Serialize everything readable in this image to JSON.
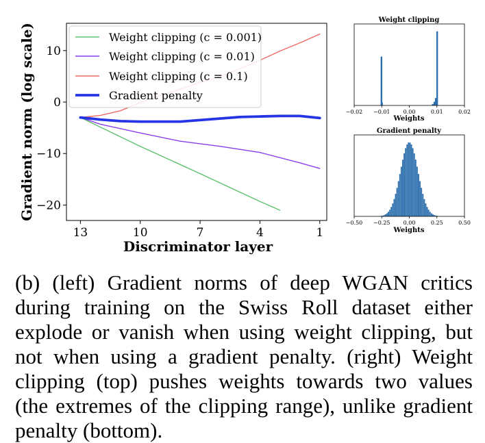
{
  "chart_data": [
    {
      "type": "line",
      "title": "",
      "xlabel": "Discriminator layer",
      "ylabel": "Gradient norm (log scale)",
      "xticks": [
        13,
        10,
        7,
        4,
        1
      ],
      "yticks": [
        10,
        0,
        -10,
        -20
      ],
      "xlim": [
        13.7,
        0.65
      ],
      "ylim": [
        -23.0,
        15.3
      ],
      "x_reversed": true,
      "grid": false,
      "legend_position": "top-left",
      "series": [
        {
          "name": "Weight clipping (c = 0.001)",
          "color": "#5cc26b",
          "line_width": 1.4,
          "x": [
            13,
            10,
            7,
            4,
            3
          ],
          "y": [
            -3.0,
            -8.6,
            -13.9,
            -19.3,
            -21.0
          ]
        },
        {
          "name": "Weight clipping (c = 0.01)",
          "color": "#8a3ef0",
          "line_width": 1.4,
          "x": [
            13,
            12,
            10,
            8,
            6,
            4,
            2,
            1
          ],
          "y": [
            -3.0,
            -4.3,
            -6.0,
            -7.6,
            -8.6,
            -9.8,
            -11.8,
            -12.9
          ]
        },
        {
          "name": "Weight clipping (c = 0.1)",
          "color": "#ef6b66",
          "line_width": 1.4,
          "x": [
            13,
            12,
            11,
            10,
            9,
            8,
            7,
            6,
            5,
            4,
            3,
            2,
            1
          ],
          "y": [
            -3.0,
            -2.6,
            -1.7,
            -0.1,
            1.3,
            2.5,
            3.8,
            5.0,
            6.5,
            8.1,
            9.9,
            11.5,
            13.2
          ]
        },
        {
          "name": "Gradient penalty",
          "color": "#2535e6",
          "line_width": 3.8,
          "x": [
            13,
            12,
            11,
            10,
            9,
            8,
            7,
            6,
            5,
            4,
            3,
            2,
            1
          ],
          "y": [
            -3.0,
            -3.4,
            -3.7,
            -3.8,
            -3.8,
            -3.8,
            -3.5,
            -3.2,
            -2.9,
            -2.8,
            -2.7,
            -2.7,
            -3.1
          ]
        }
      ]
    },
    {
      "type": "bar",
      "title": "Weight clipping",
      "xlabel": "Weights",
      "ylabel": "",
      "xticks": [
        -0.02,
        -0.01,
        0.0,
        0.01,
        0.02
      ],
      "xtick_labels": [
        "−0.02",
        "−0.01",
        "0.00",
        "0.01",
        "0.02"
      ],
      "xlim": [
        -0.02,
        0.02
      ],
      "ylim": [
        0,
        1.1
      ],
      "color": "#2e6fad",
      "bins": [
        {
          "x": -0.0101,
          "height": 0.66
        },
        {
          "x": -0.0099,
          "height": 0.04
        },
        {
          "x": 0.0085,
          "height": 0.02
        },
        {
          "x": 0.0091,
          "height": 0.05
        },
        {
          "x": 0.0096,
          "height": 0.1
        },
        {
          "x": 0.0101,
          "height": 1.0
        }
      ]
    },
    {
      "type": "bar",
      "title": "Gradient penalty",
      "xlabel": "Weights",
      "ylabel": "",
      "xticks": [
        -0.5,
        -0.25,
        0.0,
        0.25,
        0.5
      ],
      "xtick_labels": [
        "−0.50",
        "−0.25",
        "0.00",
        "0.25",
        "0.50"
      ],
      "xlim": [
        -0.5,
        0.5
      ],
      "ylim": [
        0,
        1.1
      ],
      "color": "#2e6fad",
      "distribution": {
        "mean": 0.0,
        "std": 0.08,
        "range": [
          -0.26,
          0.26
        ],
        "bin_count": 40
      }
    }
  ],
  "caption": "(b) (left) Gradient norms of deep WGAN critics during training on the Swiss Roll dataset either explode or vanish when using weight clipping, but not when using a gradient penalty. (right) Weight clipping (top) pushes weights towards two values (the extremes of the clipping range), unlike gradient penalty (bottom)."
}
